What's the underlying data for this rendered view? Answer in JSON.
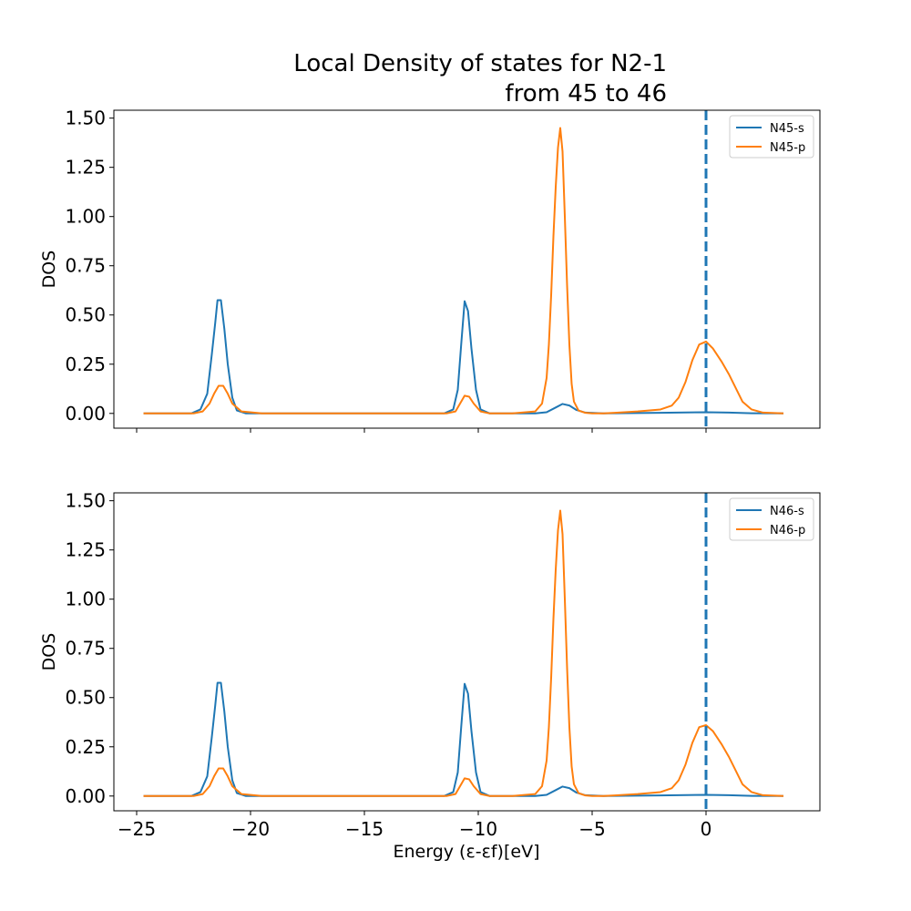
{
  "figure": {
    "title_line1": "Local Density of states for N2-1",
    "title_line2": "from 45 to 46",
    "xlabel": "Energy (ε-εf)[eV]"
  },
  "colors": {
    "s": "#1f77b4",
    "p": "#ff7f0e",
    "fermi_line": "#1f77b4"
  },
  "chart_data": [
    {
      "type": "line",
      "ylabel": "DOS",
      "xlim": [
        -26.0,
        5.0
      ],
      "ylim": [
        -0.075,
        1.54
      ],
      "xticks": [
        -25,
        -20,
        -15,
        -10,
        -5,
        0
      ],
      "yticks": [
        0.0,
        0.25,
        0.5,
        0.75,
        1.0,
        1.25,
        1.5
      ],
      "ytick_labels": [
        "0.00",
        "0.25",
        "0.50",
        "0.75",
        "1.00",
        "1.25",
        "1.50"
      ],
      "xtick_labels_shown": false,
      "fermi_level": 0,
      "legend": "top-right",
      "series": [
        {
          "name": "N45-s",
          "color_key": "s",
          "x": [
            -24.7,
            -22.6,
            -22.2,
            -21.9,
            -21.7,
            -21.55,
            -21.45,
            -21.3,
            -21.15,
            -21.0,
            -20.8,
            -20.6,
            -20.2,
            -19.5,
            -11.5,
            -11.1,
            -10.9,
            -10.75,
            -10.6,
            -10.45,
            -10.3,
            -10.1,
            -9.9,
            -9.5,
            -7.5,
            -7.0,
            -6.6,
            -6.3,
            -6.0,
            -5.7,
            -5.3,
            -4.5,
            -2.0,
            0.0,
            1.0,
            2.0,
            3.4
          ],
          "y": [
            0.0,
            0.0,
            0.02,
            0.1,
            0.3,
            0.46,
            0.575,
            0.575,
            0.43,
            0.25,
            0.08,
            0.015,
            0.0,
            0.0,
            0.0,
            0.02,
            0.12,
            0.35,
            0.57,
            0.52,
            0.33,
            0.12,
            0.02,
            0.0,
            0.0,
            0.006,
            0.03,
            0.048,
            0.04,
            0.018,
            0.004,
            0.0,
            0.003,
            0.006,
            0.004,
            0.001,
            0.0
          ]
        },
        {
          "name": "N45-p",
          "color_key": "p",
          "x": [
            -24.7,
            -22.5,
            -22.1,
            -21.8,
            -21.6,
            -21.4,
            -21.2,
            -21.0,
            -20.8,
            -20.4,
            -19.5,
            -11.4,
            -11.0,
            -10.8,
            -10.6,
            -10.4,
            -10.2,
            -9.9,
            -9.5,
            -8.5,
            -7.5,
            -7.2,
            -7.0,
            -6.9,
            -6.8,
            -6.7,
            -6.6,
            -6.5,
            -6.4,
            -6.3,
            -6.2,
            -6.1,
            -6.0,
            -5.9,
            -5.8,
            -5.6,
            -5.3,
            -5.0,
            -4.5,
            -4.0,
            -3.0,
            -2.0,
            -1.5,
            -1.2,
            -0.9,
            -0.6,
            -0.3,
            0.0,
            0.3,
            0.7,
            1.0,
            1.3,
            1.6,
            2.0,
            2.5,
            3.4
          ],
          "y": [
            0.0,
            0.0,
            0.01,
            0.05,
            0.1,
            0.14,
            0.14,
            0.1,
            0.05,
            0.01,
            0.0,
            0.0,
            0.01,
            0.05,
            0.09,
            0.085,
            0.05,
            0.01,
            0.0,
            0.0,
            0.01,
            0.05,
            0.18,
            0.35,
            0.6,
            0.9,
            1.15,
            1.35,
            1.45,
            1.33,
            1.0,
            0.65,
            0.35,
            0.15,
            0.06,
            0.015,
            0.003,
            0.0,
            0.0,
            0.003,
            0.01,
            0.02,
            0.04,
            0.08,
            0.16,
            0.27,
            0.35,
            0.365,
            0.33,
            0.26,
            0.2,
            0.13,
            0.06,
            0.02,
            0.004,
            0.0
          ]
        }
      ]
    },
    {
      "type": "line",
      "ylabel": "DOS",
      "xlim": [
        -26.0,
        5.0
      ],
      "ylim": [
        -0.075,
        1.54
      ],
      "xticks": [
        -25,
        -20,
        -15,
        -10,
        -5,
        0
      ],
      "yticks": [
        0.0,
        0.25,
        0.5,
        0.75,
        1.0,
        1.25,
        1.5
      ],
      "ytick_labels": [
        "0.00",
        "0.25",
        "0.50",
        "0.75",
        "1.00",
        "1.25",
        "1.50"
      ],
      "xtick_labels": [
        "−25",
        "−20",
        "−15",
        "−10",
        "−5",
        "0"
      ],
      "xtick_labels_shown": true,
      "fermi_level": 0,
      "legend": "top-right",
      "series": [
        {
          "name": "N46-s",
          "color_key": "s",
          "x": [
            -24.7,
            -22.6,
            -22.2,
            -21.9,
            -21.7,
            -21.55,
            -21.45,
            -21.3,
            -21.15,
            -21.0,
            -20.8,
            -20.6,
            -20.2,
            -19.5,
            -11.5,
            -11.1,
            -10.9,
            -10.75,
            -10.6,
            -10.45,
            -10.3,
            -10.1,
            -9.9,
            -9.5,
            -7.5,
            -7.0,
            -6.6,
            -6.3,
            -6.0,
            -5.7,
            -5.3,
            -4.5,
            -2.0,
            0.0,
            1.0,
            2.0,
            3.4
          ],
          "y": [
            0.0,
            0.0,
            0.02,
            0.1,
            0.3,
            0.46,
            0.575,
            0.575,
            0.43,
            0.25,
            0.08,
            0.015,
            0.0,
            0.0,
            0.0,
            0.02,
            0.12,
            0.35,
            0.57,
            0.52,
            0.33,
            0.12,
            0.02,
            0.0,
            0.0,
            0.006,
            0.03,
            0.048,
            0.04,
            0.018,
            0.004,
            0.0,
            0.003,
            0.006,
            0.004,
            0.001,
            0.0
          ]
        },
        {
          "name": "N46-p",
          "color_key": "p",
          "x": [
            -24.7,
            -22.5,
            -22.1,
            -21.8,
            -21.6,
            -21.4,
            -21.2,
            -21.0,
            -20.8,
            -20.4,
            -19.5,
            -11.4,
            -11.0,
            -10.8,
            -10.6,
            -10.4,
            -10.2,
            -9.9,
            -9.5,
            -8.5,
            -7.5,
            -7.2,
            -7.0,
            -6.9,
            -6.8,
            -6.7,
            -6.6,
            -6.5,
            -6.4,
            -6.3,
            -6.2,
            -6.1,
            -6.0,
            -5.9,
            -5.8,
            -5.6,
            -5.3,
            -5.0,
            -4.5,
            -4.0,
            -3.0,
            -2.0,
            -1.5,
            -1.2,
            -0.9,
            -0.6,
            -0.3,
            0.0,
            0.3,
            0.7,
            1.0,
            1.3,
            1.6,
            2.0,
            2.5,
            3.4
          ],
          "y": [
            0.0,
            0.0,
            0.01,
            0.05,
            0.1,
            0.14,
            0.14,
            0.1,
            0.05,
            0.01,
            0.0,
            0.0,
            0.01,
            0.05,
            0.09,
            0.085,
            0.05,
            0.01,
            0.0,
            0.0,
            0.01,
            0.05,
            0.18,
            0.35,
            0.6,
            0.9,
            1.15,
            1.35,
            1.45,
            1.33,
            1.0,
            0.65,
            0.35,
            0.15,
            0.06,
            0.015,
            0.003,
            0.0,
            0.0,
            0.003,
            0.01,
            0.02,
            0.04,
            0.08,
            0.16,
            0.27,
            0.35,
            0.36,
            0.33,
            0.26,
            0.2,
            0.13,
            0.06,
            0.02,
            0.004,
            0.0
          ]
        }
      ]
    }
  ]
}
